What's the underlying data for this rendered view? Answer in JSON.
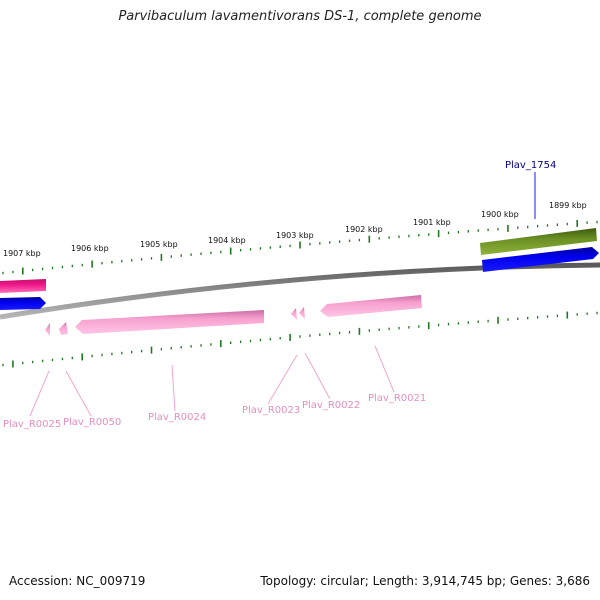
{
  "title": "Parvibaculum lavamentivorans DS-1, complete genome",
  "footer": {
    "accession": "Accession: NC_009719",
    "topology": "Topology: circular; Length: 3,914,745 bp; Genes: 3,686"
  },
  "ticks": [
    {
      "label": "1907 kbp"
    },
    {
      "label": "1906 kbp"
    },
    {
      "label": "1905 kbp"
    },
    {
      "label": "1904 kbp"
    },
    {
      "label": "1903 kbp"
    },
    {
      "label": "1902 kbp"
    },
    {
      "label": "1901 kbp"
    },
    {
      "label": "1900 kbp"
    },
    {
      "label": "1899 kbp"
    }
  ],
  "genes": [
    {
      "label": "Plav_1754",
      "color": "#00008b"
    },
    {
      "label": "Plav_R0025",
      "color": "#e38fc0"
    },
    {
      "label": "Plav_R0050",
      "color": "#e38fc0"
    },
    {
      "label": "Plav_R0024",
      "color": "#e38fc0"
    },
    {
      "label": "Plav_R0023",
      "color": "#e38fc0"
    },
    {
      "label": "Plav_R0022",
      "color": "#e38fc0"
    },
    {
      "label": "Plav_R0021",
      "color": "#e38fc0"
    }
  ],
  "colors": {
    "backbone": "#808080",
    "ticks": "#1f7a1f",
    "forward_cds": "#0000e6",
    "forward_feature": "#6b8e23",
    "left_feature": "#e0157a",
    "rna": "#f7a0cf"
  }
}
